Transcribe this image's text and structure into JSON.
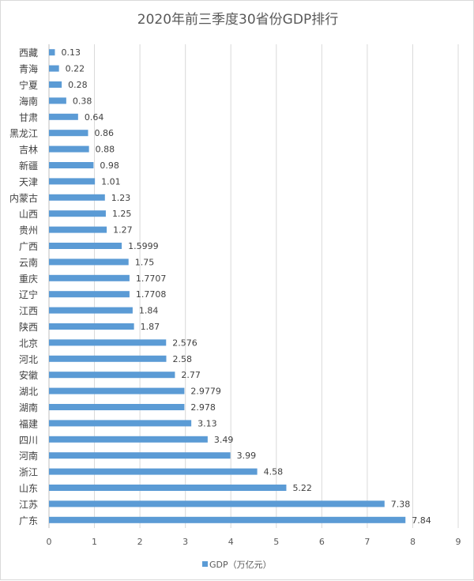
{
  "chart_data": {
    "type": "bar",
    "orientation": "horizontal",
    "title": "2020年前三季度30省份GDP排行",
    "categories": [
      "西藏",
      "青海",
      "宁夏",
      "海南",
      "甘肃",
      "黑龙江",
      "吉林",
      "新疆",
      "天津",
      "内蒙古",
      "山西",
      "贵州",
      "广西",
      "云南",
      "重庆",
      "辽宁",
      "江西",
      "陕西",
      "北京",
      "河北",
      "安徽",
      "湖北",
      "湖南",
      "福建",
      "四川",
      "河南",
      "浙江",
      "山东",
      "江苏",
      "广东"
    ],
    "series": [
      {
        "name": "GDP（万亿元）",
        "color": "#5b9bd5",
        "values": [
          0.13,
          0.22,
          0.28,
          0.38,
          0.64,
          0.86,
          0.88,
          0.98,
          1.01,
          1.23,
          1.25,
          1.27,
          1.5999,
          1.75,
          1.7707,
          1.7708,
          1.84,
          1.87,
          2.576,
          2.58,
          2.77,
          2.9779,
          2.978,
          3.13,
          3.49,
          3.99,
          4.58,
          5.22,
          7.38,
          7.84
        ],
        "labels": [
          "0.13",
          "0.22",
          "0.28",
          "0.38",
          "0.64",
          "0.86",
          "0.88",
          "0.98",
          "1.01",
          "1.23",
          "1.25",
          "1.27",
          "1.5999",
          "1.75",
          "1.7707",
          "1.7708",
          "1.84",
          "1.87",
          "2.576",
          "2.58",
          "2.77",
          "2.9779",
          "2.978",
          "3.13",
          "3.49",
          "3.99",
          "4.58",
          "5.22",
          "7.38",
          "7.84"
        ]
      }
    ],
    "xlim": [
      0,
      9
    ],
    "xticks": [
      "0",
      "1",
      "2",
      "3",
      "4",
      "5",
      "6",
      "7",
      "8",
      "9"
    ],
    "grid": true,
    "legend": "bottom",
    "xlabel": "",
    "ylabel": ""
  }
}
